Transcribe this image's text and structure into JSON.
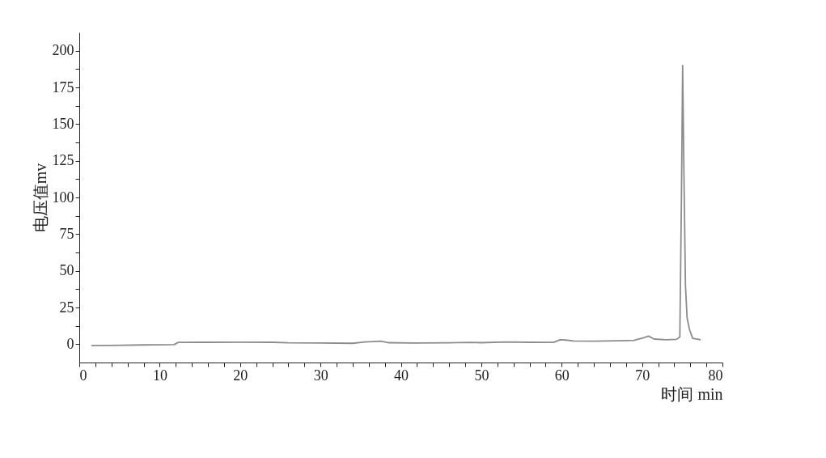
{
  "chart_data": {
    "type": "line",
    "xlabel": "时间 min",
    "ylabel": "电压值mv",
    "x": [
      1.5,
      4,
      8,
      11.8,
      12.3,
      16,
      20,
      24,
      26,
      30,
      34,
      35.5,
      37.5,
      38.5,
      42,
      46,
      48.5,
      50,
      53,
      56,
      59,
      59.8,
      60.5,
      61.5,
      64,
      67,
      69,
      70.3,
      70.8,
      71.5,
      73,
      74.3,
      74.7,
      74.9,
      75.05,
      75.2,
      75.4,
      75.6,
      75.9,
      76.3,
      77.3
    ],
    "series": [
      {
        "color": "#8c8c8c",
        "values": [
          -1,
          -0.8,
          -0.5,
          -0.3,
          1.2,
          1.3,
          1.4,
          1.3,
          0.9,
          0.8,
          0.6,
          1.5,
          2,
          1,
          0.8,
          0.9,
          1.2,
          1,
          1.5,
          1.3,
          1.2,
          3,
          2.8,
          2.2,
          2,
          2.3,
          2.6,
          4.5,
          5.5,
          3.5,
          3,
          3.3,
          5,
          100,
          190,
          120,
          40,
          18,
          10,
          4,
          3
        ]
      }
    ],
    "xlim": [
      0,
      80
    ],
    "xticks": [
      0,
      {
        "value": 2,
        "label": null
      },
      {
        "value": 4,
        "label": null
      },
      {
        "value": 6,
        "label": null
      },
      {
        "value": 8,
        "label": null
      },
      10,
      {
        "value": 12,
        "label": null
      },
      {
        "value": 14,
        "label": null
      },
      {
        "value": 16,
        "label": null
      },
      {
        "value": 18,
        "label": null
      },
      20,
      {
        "value": 22,
        "label": null
      },
      {
        "value": 24,
        "label": null
      },
      {
        "value": 26,
        "label": null
      },
      {
        "value": 28,
        "label": null
      },
      30,
      {
        "value": 32,
        "label": null
      },
      {
        "value": 34,
        "label": null
      },
      {
        "value": 36,
        "label": null
      },
      {
        "value": 38,
        "label": null
      },
      40,
      {
        "value": 42,
        "label": null
      },
      {
        "value": 44,
        "label": null
      },
      {
        "value": 46,
        "label": null
      },
      {
        "value": 48,
        "label": null
      },
      50,
      {
        "value": 52,
        "label": null
      },
      {
        "value": 54,
        "label": null
      },
      {
        "value": 56,
        "label": null
      },
      {
        "value": 58,
        "label": null
      },
      60,
      {
        "value": 62,
        "label": null
      },
      {
        "value": 64,
        "label": null
      },
      {
        "value": 66,
        "label": null
      },
      {
        "value": 68,
        "label": null
      },
      70,
      {
        "value": 72,
        "label": null
      },
      {
        "value": 74,
        "label": null
      },
      {
        "value": 76,
        "label": null
      },
      {
        "value": 78,
        "label": null
      },
      80
    ],
    "ylim": [
      -12.5,
      212.5
    ],
    "yticks": [
      0,
      {
        "value": 12.5,
        "label": null
      },
      25,
      {
        "value": 37.5,
        "label": null
      },
      50,
      {
        "value": 62.5,
        "label": null
      },
      75,
      {
        "value": 87.5,
        "label": null
      },
      100,
      {
        "value": 112.5,
        "label": null
      },
      125,
      {
        "value": 137.5,
        "label": null
      },
      150,
      {
        "value": 162.5,
        "label": null
      },
      175,
      {
        "value": 187.5,
        "label": null
      },
      200
    ],
    "grid": false,
    "marker": "none",
    "line_style": "solid"
  }
}
